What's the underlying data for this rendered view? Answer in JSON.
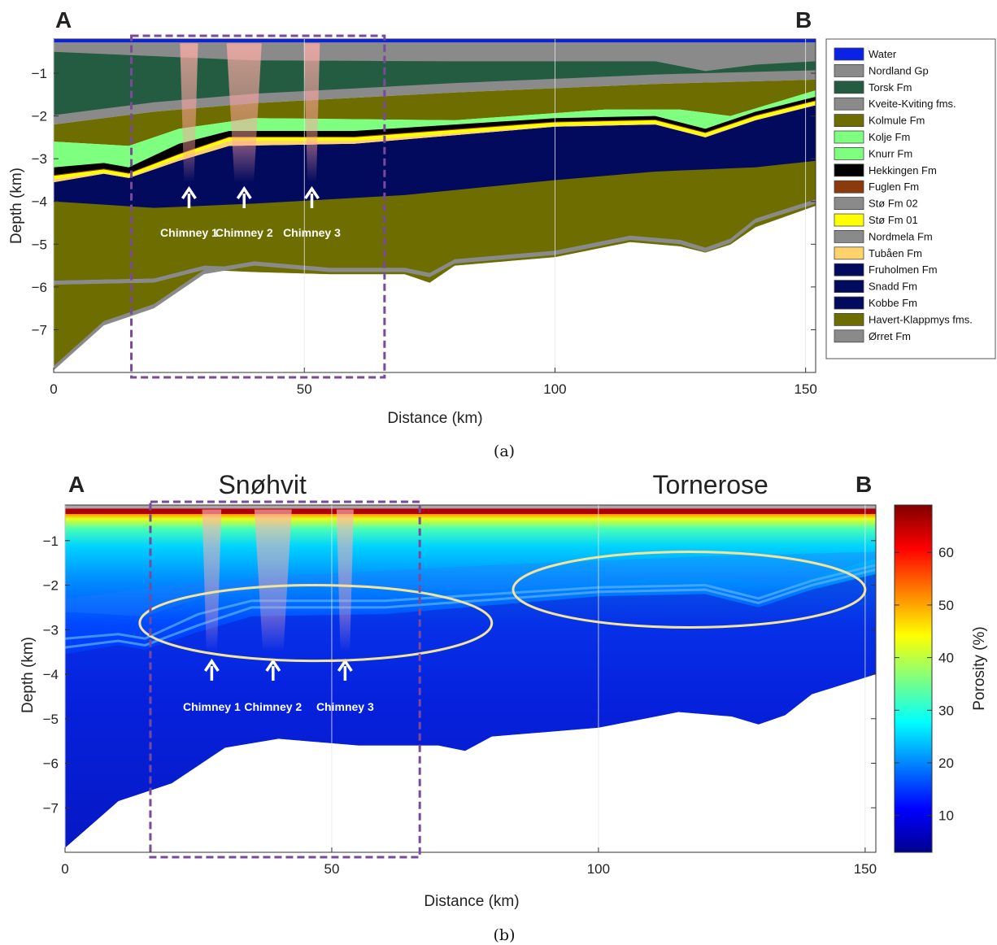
{
  "chart_data": [
    {
      "type": "area",
      "panel_label": "(a)",
      "corner_left": "A",
      "corner_right": "B",
      "xlabel": "Distance (km)",
      "ylabel": "Depth (km)",
      "xlim": [
        0,
        152
      ],
      "ylim": [
        -8,
        -0.2
      ],
      "xticks": [
        0,
        50,
        100,
        150
      ],
      "yticks": [
        -1,
        -2,
        -3,
        -4,
        -5,
        -6,
        -7
      ],
      "chimneys": [
        {
          "label": "Chimney 1",
          "x": 27
        },
        {
          "label": "Chimney 2",
          "x": 38
        },
        {
          "label": "Chimney 3",
          "x": 51.5
        }
      ],
      "highlight_box": {
        "x": [
          15.5,
          66
        ],
        "y": [
          -8,
          -0.2
        ]
      },
      "legend": {
        "placement": "right",
        "entries": [
          {
            "name": "Water",
            "color": "#0a22e6"
          },
          {
            "name": "Nordland Gp",
            "color": "#8a8a8a"
          },
          {
            "name": "Torsk Fm",
            "color": "#245c42"
          },
          {
            "name": "Kveite-Kviting fms.",
            "color": "#8a8a8a"
          },
          {
            "name": "Kolmule Fm",
            "color": "#6e6e00"
          },
          {
            "name": "Kolje Fm",
            "color": "#7fff7f"
          },
          {
            "name": "Knurr Fm",
            "color": "#7fff7f"
          },
          {
            "name": "Hekkingen Fm",
            "color": "#000000"
          },
          {
            "name": "Fuglen Fm",
            "color": "#8b3a0c"
          },
          {
            "name": "Stø Fm 02",
            "color": "#8a8a8a"
          },
          {
            "name": "Stø Fm 01",
            "color": "#ffff00"
          },
          {
            "name": "Nordmela Fm",
            "color": "#8a8a8a"
          },
          {
            "name": "Tubåen Fm",
            "color": "#ffd36b"
          },
          {
            "name": "Fruholmen Fm",
            "color": "#020a5e"
          },
          {
            "name": "Snadd Fm",
            "color": "#020a5e"
          },
          {
            "name": "Kobbe Fm",
            "color": "#020a5e"
          },
          {
            "name": "Havert-Klappmys fms.",
            "color": "#6e6e00"
          },
          {
            "name": "Ørret Fm",
            "color": "#8a8a8a"
          }
        ]
      }
    },
    {
      "type": "heatmap",
      "panel_label": "(b)",
      "corner_left": "A",
      "corner_right": "B",
      "field_names": [
        {
          "name": "Snøhvit",
          "x": 37
        },
        {
          "name": "Tornerose",
          "x": 121
        }
      ],
      "xlabel": "Distance (km)",
      "ylabel": "Depth (km)",
      "xlim": [
        0,
        152
      ],
      "ylim": [
        -8,
        -0.2
      ],
      "xticks": [
        0,
        50,
        100,
        150
      ],
      "yticks": [
        -1,
        -2,
        -3,
        -4,
        -5,
        -6,
        -7
      ],
      "chimneys": [
        {
          "label": "Chimney 1",
          "x": 27.5
        },
        {
          "label": "Chimney 2",
          "x": 39
        },
        {
          "label": "Chimney 3",
          "x": 52.5
        }
      ],
      "highlight_box": {
        "x": [
          16,
          66.5
        ],
        "y": [
          -8,
          -0.2
        ]
      },
      "ellipses": [
        {
          "cx": 47,
          "cy": -2.85,
          "rx": 33,
          "ry": 0.85
        },
        {
          "cx": 117,
          "cy": -2.1,
          "rx": 33,
          "ry": 0.85
        }
      ],
      "colorbar": {
        "label": "Porosity (%)",
        "range": [
          3,
          69
        ],
        "ticks": [
          10,
          20,
          30,
          40,
          50,
          60
        ]
      }
    }
  ]
}
